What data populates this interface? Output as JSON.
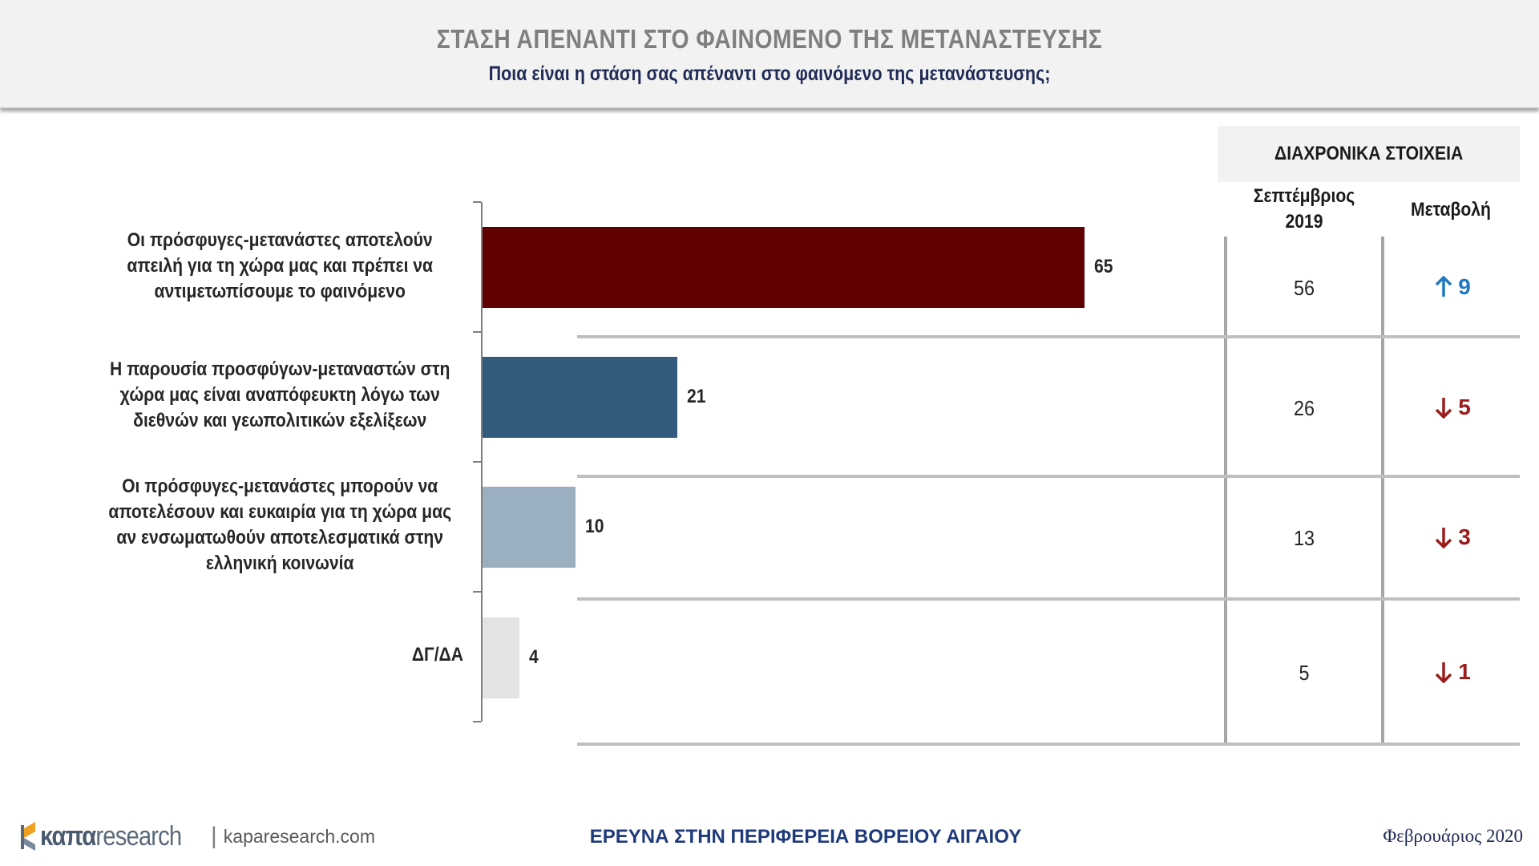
{
  "header": {
    "title": "ΣΤΑΣΗ ΑΠΕΝΑΝΤΙ ΣΤΟ ΦΑΙΝΟΜΕΝΟ ΤΗΣ ΜΕΤΑΝΑΣΤΕΥΣΗΣ",
    "subtitle": "Ποια είναι η στάση σας απέναντι στο φαινόμενο της μετανάστευσης;"
  },
  "chart_data": {
    "type": "bar",
    "orientation": "horizontal",
    "categories": [
      "Οι πρόσφυγες-μετανάστες αποτελούν απειλή για τη χώρα μας και πρέπει να αντιμετωπίσουμε το φαινόμενο",
      "Η παρουσία προσφύγων-μεταναστών στη χώρα μας είναι αναπόφευκτη λόγω των διεθνών και γεωπολιτικών εξελίξεων",
      "Οι πρόσφυγες-μετανάστες μπορούν να αποτελέσουν και ευκαιρία για τη χώρα μας αν ενσωματωθούν αποτελεσματικά στην ελληνική κοινωνία",
      "ΔΓ/ΔΑ"
    ],
    "category_lines": [
      [
        "Οι πρόσφυγες-μετανάστες αποτελούν",
        "απειλή για τη χώρα μας και πρέπει να",
        "αντιμετωπίσουμε το φαινόμενο"
      ],
      [
        "Η παρουσία προσφύγων-μεταναστών στη",
        "χώρα μας είναι αναπόφευκτη λόγω των",
        "διεθνών και γεωπολιτικών εξελίξεων"
      ],
      [
        "Οι πρόσφυγες-μετανάστες μπορούν να",
        "αποτελέσουν και ευκαιρία για τη χώρα μας",
        "αν ενσωματωθούν αποτελεσματικά στην",
        "ελληνική κοινωνία"
      ],
      [
        "ΔΓ/ΔΑ"
      ]
    ],
    "values": [
      65,
      21,
      10,
      4
    ],
    "value_labels": [
      "65",
      "21",
      "10",
      "4"
    ],
    "colors": [
      "#600000",
      "#335b7d",
      "#9aafc0",
      "#e3e3e3"
    ],
    "xlim": [
      0,
      100
    ],
    "grid": false,
    "title": "",
    "xlabel": "",
    "ylabel": ""
  },
  "history": {
    "header": "ΔΙΑΧΡΟΝΙΚΑ ΣΤΟΙΧΕΙΑ",
    "col_prev_line1": "Σεπτέμβριος",
    "col_prev_line2": "2019",
    "col_change": "Μεταβολή",
    "rows": [
      {
        "prev": "56",
        "change": "9",
        "direction": "up",
        "color": "#1f78c1"
      },
      {
        "prev": "26",
        "change": "5",
        "direction": "down",
        "color": "#9b1c1c"
      },
      {
        "prev": "13",
        "change": "3",
        "direction": "down",
        "color": "#9b1c1c"
      },
      {
        "prev": "5",
        "change": "1",
        "direction": "down",
        "color": "#9b1c1c"
      }
    ]
  },
  "footer": {
    "logo_bold": "καπα",
    "logo_light": "research",
    "separator": "|",
    "url": "kaparesearch.com",
    "center": "ΕΡΕΥΝΑ ΣΤΗΝ ΠΕΡΙΦΕΡΕΙΑ ΒΟΡΕΙΟΥ ΑΙΓΑΙΟΥ",
    "date": "Φεβρουάριος 2020"
  }
}
